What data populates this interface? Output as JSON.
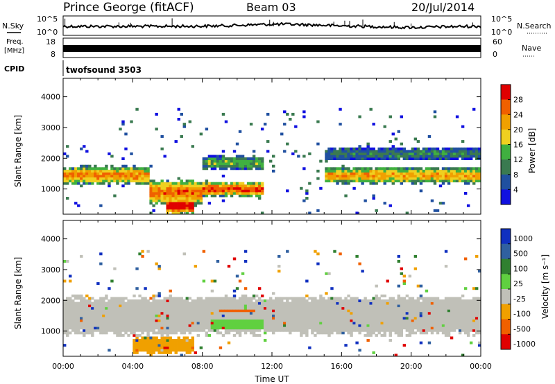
{
  "header": {
    "site": "Prince George (fitACF)",
    "beam": "Beam 03",
    "date": "20/Jul/2014"
  },
  "strips": {
    "nsky_label": "N.Sky",
    "nsearch_label": "N.Search",
    "nsky_ticks": [
      "10^5",
      "10^0"
    ],
    "nsearch_ticks": [
      "10^5",
      "10^0"
    ],
    "freq_label_1": "Freq.",
    "freq_label_2": "[MHz]",
    "freq_ticks": [
      "18",
      "8"
    ],
    "nave_label": "Nave",
    "nave_ticks": [
      "60",
      "0"
    ],
    "cpid_label": "CPID",
    "cpid_value": "twofsound 3503"
  },
  "chart_data": [
    {
      "type": "heatmap",
      "title": "",
      "ylabel": "Slant Range [km]",
      "ylim": [
        180,
        4600
      ],
      "yticks": [
        "1000",
        "2000",
        "3000",
        "4000"
      ],
      "colorbar_label": "Power [dB]",
      "colorbar_ticks": [
        "4",
        "8",
        "12",
        "16",
        "20",
        "24",
        "28"
      ],
      "colors": [
        "#1010e0",
        "#2050a0",
        "#3a7a50",
        "#40b040",
        "#f0d020",
        "#f0a000",
        "#f06000",
        "#e00000"
      ],
      "bands": [
        {
          "from": 0.0,
          "to": 5.0,
          "center": 1450,
          "width": 420,
          "level": 0.75
        },
        {
          "from": 5.0,
          "to": 8.0,
          "center": 900,
          "width": 600,
          "level": 0.8
        },
        {
          "from": 6.0,
          "to": 7.5,
          "center": 450,
          "width": 380,
          "level": 1.0
        },
        {
          "from": 8.0,
          "to": 11.5,
          "center": 1000,
          "width": 350,
          "level": 0.85
        },
        {
          "from": 8.0,
          "to": 11.5,
          "center": 1850,
          "width": 320,
          "level": 0.45
        },
        {
          "from": 15.0,
          "to": 24.0,
          "center": 1450,
          "width": 380,
          "level": 0.7
        },
        {
          "from": 15.0,
          "to": 24.0,
          "center": 2150,
          "width": 300,
          "level": 0.3
        }
      ]
    },
    {
      "type": "heatmap",
      "title": "",
      "xlabel": "Time UT",
      "ylabel": "Slant Range [km]",
      "xticks": [
        "00:00",
        "04:00",
        "08:00",
        "12:00",
        "16:00",
        "20:00",
        "00:00"
      ],
      "xlim": [
        0,
        24
      ],
      "ylim": [
        180,
        4600
      ],
      "yticks": [
        "1000",
        "2000",
        "3000",
        "4000"
      ],
      "colorbar_label": "Velocity [m s⁻¹]",
      "colorbar_ticks": [
        "1000",
        "500",
        "100",
        "25",
        "-25",
        "-100",
        "-500",
        "-1000"
      ],
      "colors": [
        "#1030c0",
        "#3060a0",
        "#308030",
        "#60d040",
        "#c0c0b8",
        "#f0a000",
        "#f06000",
        "#e00000"
      ],
      "bands": [
        {
          "from": 0.0,
          "to": 24.0,
          "center": 1500,
          "width": 900,
          "value": 0
        },
        {
          "from": 4.0,
          "to": 7.5,
          "center": 550,
          "width": 400,
          "value": -100
        },
        {
          "from": 8.5,
          "to": 11.5,
          "center": 1300,
          "width": 450,
          "value": 100
        },
        {
          "from": 9.0,
          "to": 11.0,
          "center": 1650,
          "width": 150,
          "value": -500
        }
      ]
    }
  ]
}
